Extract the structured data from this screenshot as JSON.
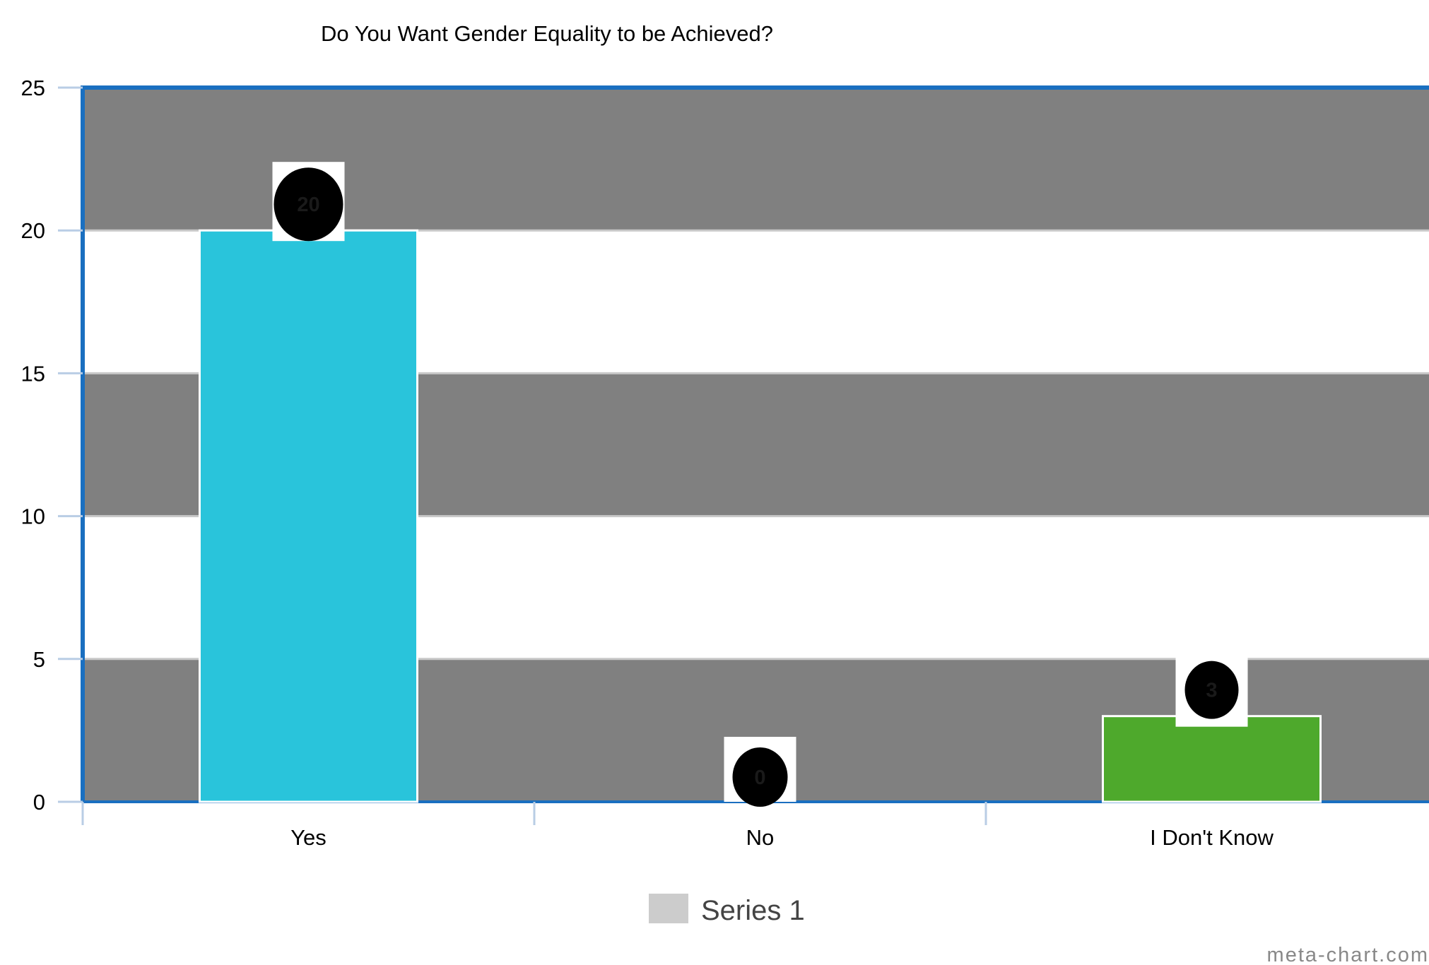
{
  "chart_data": {
    "type": "bar",
    "title": "Do You Want Gender Equality to be Achieved?",
    "categories": [
      "Yes",
      "No",
      "I Don't Know"
    ],
    "series": [
      {
        "name": "Series 1",
        "values": [
          20,
          0,
          3
        ],
        "colors": [
          "#29c4db",
          "#1f77b4",
          "#4ea92c"
        ]
      }
    ],
    "ylim": [
      0,
      25
    ],
    "y_ticks": [
      "0",
      "5",
      "10",
      "15",
      "20",
      "25"
    ],
    "grid": true,
    "band_color": "#808080",
    "axis_color": "#1a6fc0",
    "data_label_bg": "#000000",
    "legend": {
      "placement": "bottom",
      "swatch_color": "#cccccc",
      "label": "Series 1"
    },
    "watermark": "meta-chart.com"
  }
}
